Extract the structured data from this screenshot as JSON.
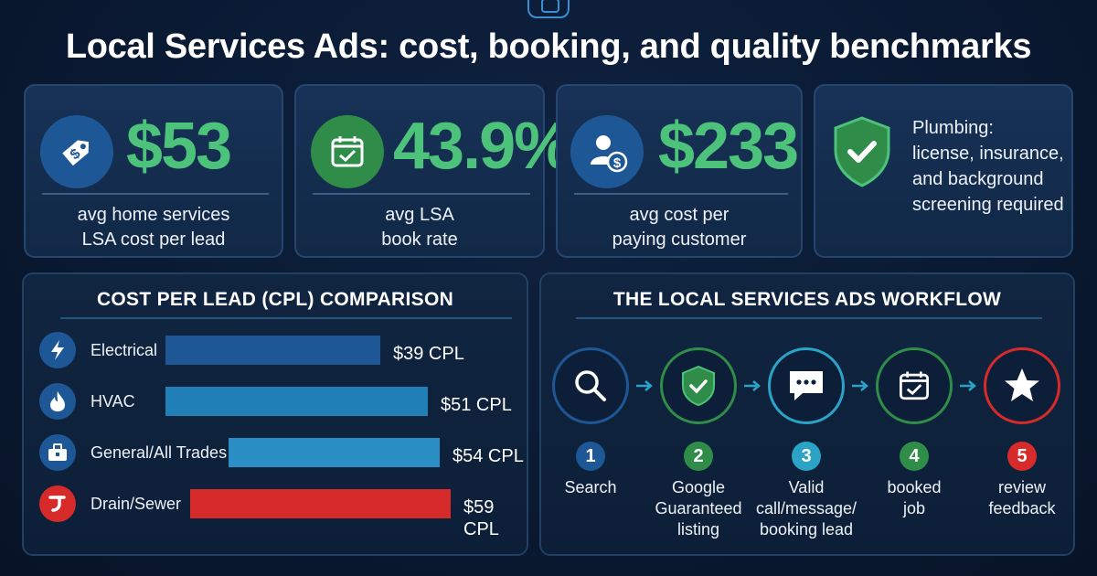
{
  "title": "Local Services Ads: cost, booking, and quality benchmarks",
  "stats": [
    {
      "value": "$53",
      "label_line1": "avg home services",
      "label_line2": "LSA cost per lead",
      "icon": "price-tag-dollar-icon"
    },
    {
      "value": "43.9%",
      "label_line1": "avg LSA",
      "label_line2": "book rate",
      "icon": "calendar-check-icon"
    },
    {
      "value": "$233",
      "label_line1": "avg cost per",
      "label_line2": "paying customer",
      "icon": "user-dollar-icon"
    }
  ],
  "quality_card": {
    "icon": "shield-check-icon",
    "lines": [
      "Plumbing:",
      "license, insurance,",
      "and background",
      "screening required"
    ]
  },
  "cpl_panel": {
    "title": "COST PER LEAD (CPL) COMPARISON",
    "rows": [
      {
        "label": "Electrical",
        "value_label": "$39 CPL",
        "cpl": 39,
        "color": "#1e5796",
        "icon": "lightning-bolt-icon"
      },
      {
        "label": "HVAC",
        "value_label": "$51 CPL",
        "cpl": 51,
        "color": "#1f7fb6",
        "icon": "flame-icon"
      },
      {
        "label": "General/All Trades",
        "value_label": "$54 CPL",
        "cpl": 54,
        "color": "#2b8ec4",
        "icon": "toolbox-icon"
      },
      {
        "label": "Drain/Sewer",
        "value_label": "$59 CPL",
        "cpl": 59,
        "color": "#d72b2b",
        "icon": "drain-pipe-icon"
      }
    ]
  },
  "workflow_panel": {
    "title": "THE LOCAL SERVICES ADS WORKFLOW",
    "steps": [
      {
        "num": "1",
        "lines": [
          "Search"
        ],
        "color": "#1e5796",
        "icon": "magnifier-icon"
      },
      {
        "num": "2",
        "lines": [
          "Google",
          "Guaranteed",
          "listing"
        ],
        "color": "#2f8d49",
        "icon": "shield-check-icon"
      },
      {
        "num": "3",
        "lines": [
          "Valid",
          "call/message/",
          "booking lead"
        ],
        "color": "#2aa3c6",
        "icon": "chat-bubble-icon"
      },
      {
        "num": "4",
        "lines": [
          "booked",
          "job"
        ],
        "color": "#2f8d49",
        "icon": "calendar-check-icon"
      },
      {
        "num": "5",
        "lines": [
          "review",
          "feedback"
        ],
        "color": "#d72b2b",
        "icon": "star-icon"
      }
    ]
  },
  "colors": {
    "background": "#0a1a33",
    "accent_green": "#4cc27a",
    "accent_blue": "#1e5796",
    "accent_red": "#d72b2b"
  }
}
